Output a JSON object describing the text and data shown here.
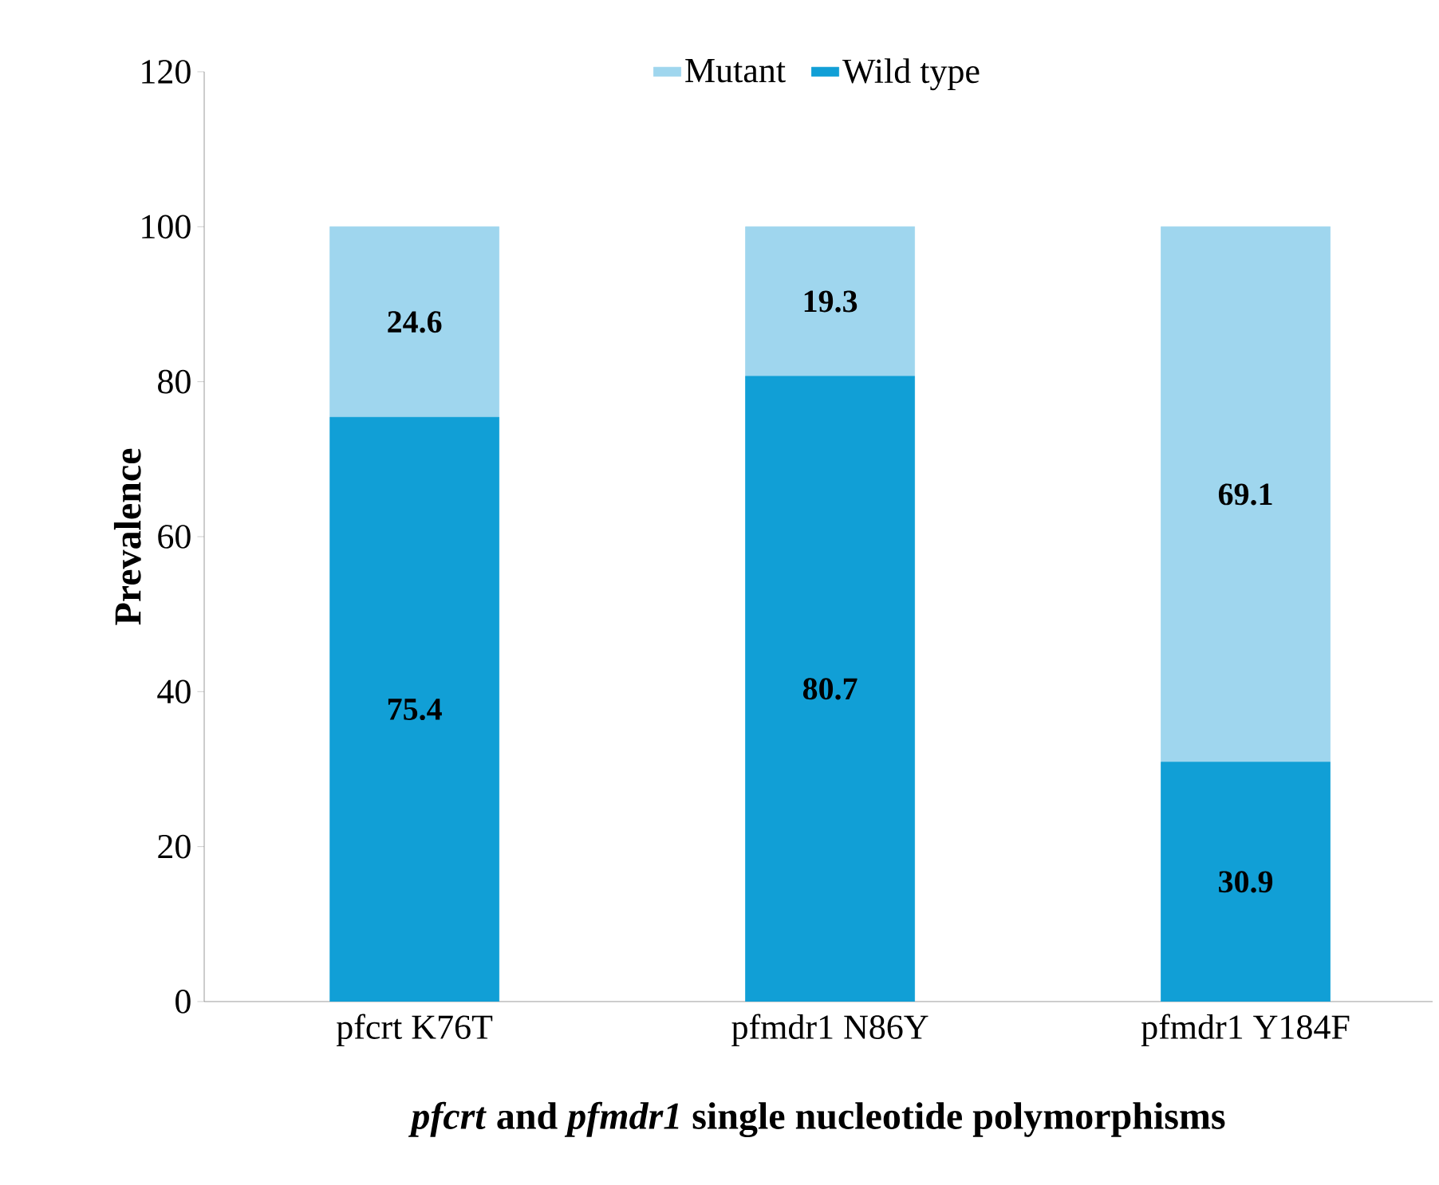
{
  "chart_data": {
    "type": "bar",
    "stacked": true,
    "categories": [
      "pfcrt K76T",
      "pfmdr1 N86Y",
      "pfmdr1 Y184F"
    ],
    "series": [
      {
        "name": "Wild type",
        "color": "#119fd6",
        "values": [
          75.4,
          80.7,
          30.9
        ]
      },
      {
        "name": "Mutant",
        "color": "#9fd6ee",
        "values": [
          24.6,
          19.3,
          69.1
        ]
      }
    ],
    "xlabel": "*pfcrt* and *pfmdr1* single nucleotide polymorphisms",
    "ylabel": "Prevalence",
    "ylim": [
      0,
      120
    ],
    "yticks": [
      0,
      20,
      40,
      60,
      80,
      100,
      120
    ],
    "data_labels": true,
    "legend": "top",
    "grid": false
  }
}
